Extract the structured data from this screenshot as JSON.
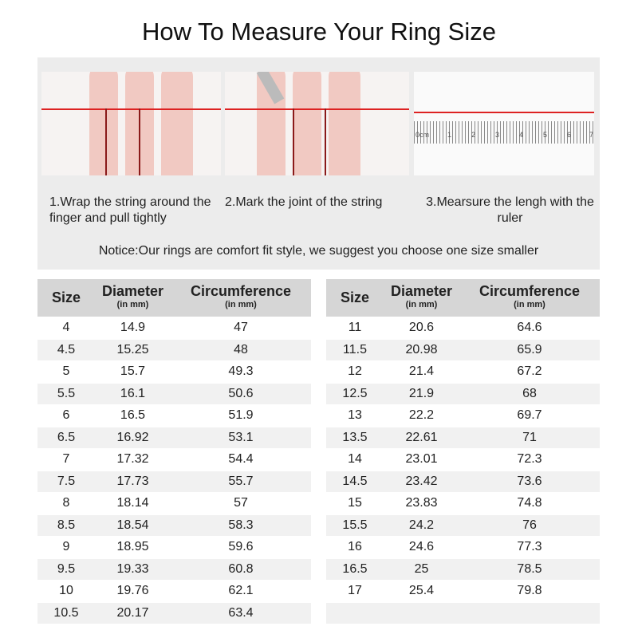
{
  "title": "How To Measure Your Ring Size",
  "steps": [
    {
      "text": "1.Wrap the string around the finger and pull tightly"
    },
    {
      "text": "2.Mark the joint of the string"
    },
    {
      "text": "3.Mearsure the lengh with the ruler"
    }
  ],
  "ruler_labels": [
    "0cm",
    "1",
    "2",
    "3",
    "4",
    "5",
    "6",
    "7"
  ],
  "notice": "Notice:Our rings are comfort fit style, we suggest you choose one size smaller",
  "table": {
    "headers": {
      "size": "Size",
      "diameter": "Diameter",
      "circumference": "Circumference",
      "unit": "(in mm)"
    },
    "left": [
      [
        "4",
        "14.9",
        "47"
      ],
      [
        "4.5",
        "15.25",
        "48"
      ],
      [
        "5",
        "15.7",
        "49.3"
      ],
      [
        "5.5",
        "16.1",
        "50.6"
      ],
      [
        "6",
        "16.5",
        "51.9"
      ],
      [
        "6.5",
        "16.92",
        "53.1"
      ],
      [
        "7",
        "17.32",
        "54.4"
      ],
      [
        "7.5",
        "17.73",
        "55.7"
      ],
      [
        "8",
        "18.14",
        "57"
      ],
      [
        "8.5",
        "18.54",
        "58.3"
      ],
      [
        "9",
        "18.95",
        "59.6"
      ],
      [
        "9.5",
        "19.33",
        "60.8"
      ],
      [
        "10",
        "19.76",
        "62.1"
      ],
      [
        "10.5",
        "20.17",
        "63.4"
      ]
    ],
    "right": [
      [
        "11",
        "20.6",
        "64.6"
      ],
      [
        "11.5",
        "20.98",
        "65.9"
      ],
      [
        "12",
        "21.4",
        "67.2"
      ],
      [
        "12.5",
        "21.9",
        "68"
      ],
      [
        "13",
        "22.2",
        "69.7"
      ],
      [
        "13.5",
        "22.61",
        "71"
      ],
      [
        "14",
        "23.01",
        "72.3"
      ],
      [
        "14.5",
        "23.42",
        "73.6"
      ],
      [
        "15",
        "23.83",
        "74.8"
      ],
      [
        "15.5",
        "24.2",
        "76"
      ],
      [
        "16",
        "24.6",
        "77.3"
      ],
      [
        "16.5",
        "25",
        "78.5"
      ],
      [
        "17",
        "25.4",
        "79.8"
      ],
      [
        "",
        "",
        ""
      ]
    ]
  }
}
